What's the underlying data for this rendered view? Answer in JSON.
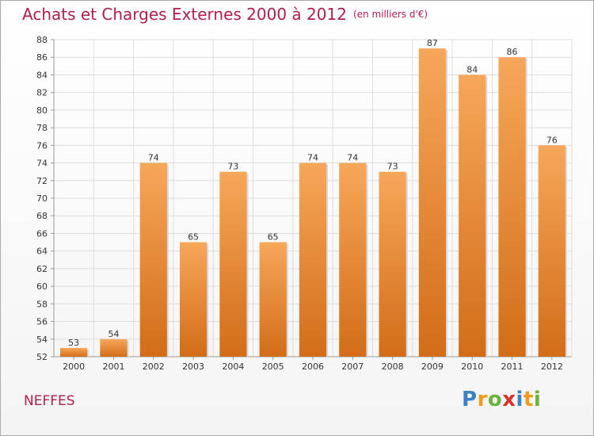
{
  "title": {
    "main": "Achats et Charges Externes 2000 à 2012",
    "unit": "(en milliers d'€)"
  },
  "commune": "NEFFES",
  "logo": {
    "text": "Proxiti",
    "colors": [
      "#3b82c4",
      "#f39a18",
      "#69b23d",
      "#d9302c",
      "#3b82c4",
      "#f39a18",
      "#69b23d"
    ]
  },
  "colors": {
    "bar_top": "#f7a75a",
    "bar_bottom": "#d26d18",
    "title": "#b01e4a",
    "grid": "#dddddd"
  },
  "chart_data": {
    "type": "bar",
    "categories": [
      "2000",
      "2001",
      "2002",
      "2003",
      "2004",
      "2005",
      "2006",
      "2007",
      "2008",
      "2009",
      "2010",
      "2011",
      "2012"
    ],
    "values": [
      53,
      54,
      74,
      65,
      73,
      65,
      74,
      74,
      73,
      87,
      84,
      86,
      76
    ],
    "data_labels": [
      "53",
      "54",
      "74",
      "65",
      "73",
      "65",
      "74",
      "74",
      "73",
      "87",
      "84",
      "86",
      "76"
    ],
    "ylim": [
      52,
      88
    ],
    "yticks": [
      52,
      54,
      56,
      58,
      60,
      62,
      64,
      66,
      68,
      70,
      72,
      74,
      76,
      78,
      80,
      82,
      84,
      86,
      88
    ],
    "grid": true,
    "xlabel": "",
    "ylabel": ""
  }
}
